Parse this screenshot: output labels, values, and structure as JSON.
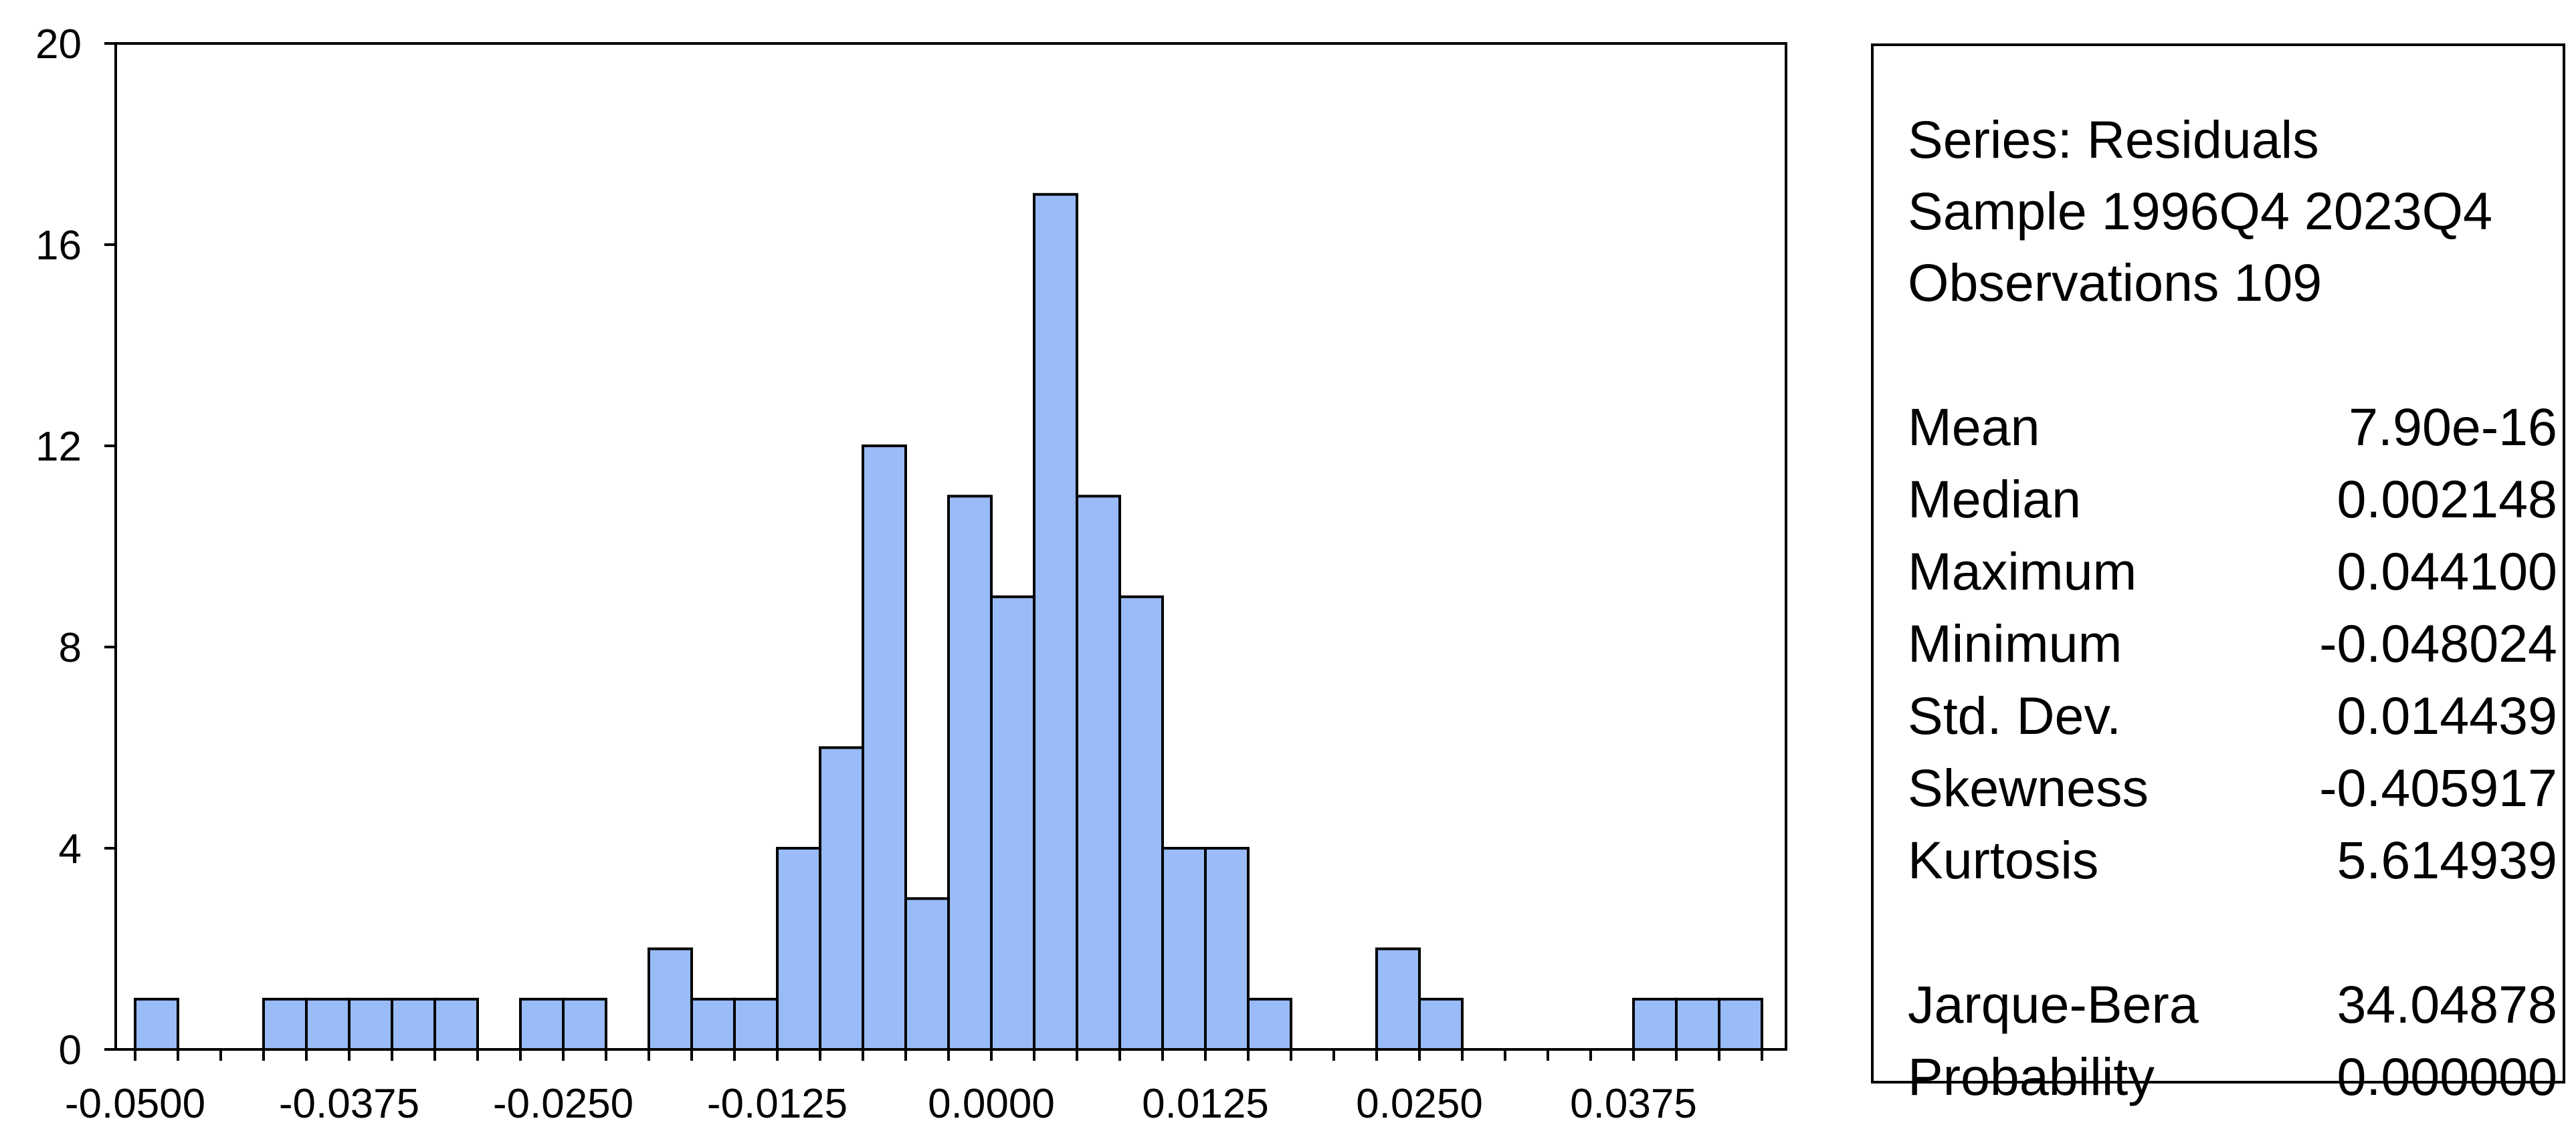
{
  "chart_data": {
    "type": "bar",
    "title": "",
    "xlabel": "",
    "ylabel": "",
    "ylim": [
      0,
      20
    ],
    "yticks": [
      0,
      4,
      8,
      12,
      16,
      20
    ],
    "xticks": [
      "-0.0500",
      "-0.0375",
      "-0.0250",
      "-0.0125",
      "0.0000",
      "0.0125",
      "0.0250",
      "0.0375"
    ],
    "bin_start": -0.05,
    "bin_width": 0.0025,
    "values": [
      1,
      0,
      0,
      1,
      1,
      1,
      1,
      1,
      0,
      1,
      1,
      0,
      2,
      1,
      1,
      4,
      6,
      12,
      3,
      11,
      9,
      17,
      11,
      9,
      4,
      4,
      1,
      0,
      0,
      2,
      1,
      0,
      0,
      0,
      0,
      1,
      1,
      1
    ],
    "bar_color": "#99bbf7",
    "grid": false,
    "legend": "none"
  },
  "stats": {
    "series_label": "Series: Residuals",
    "sample_label": "Sample 1996Q4 2023Q4",
    "observations_label": "Observations 109",
    "rows": [
      {
        "label": "Mean",
        "value": "7.90e-16"
      },
      {
        "label": "Median",
        "value": "0.002148"
      },
      {
        "label": "Maximum",
        "value": "0.044100"
      },
      {
        "label": "Minimum",
        "value": "-0.048024"
      },
      {
        "label": "Std. Dev.",
        "value": "0.014439"
      },
      {
        "label": "Skewness",
        "value": "-0.405917"
      },
      {
        "label": "Kurtosis",
        "value": "5.614939"
      }
    ],
    "tests": [
      {
        "label": "Jarque-Bera",
        "value": "34.04878"
      },
      {
        "label": "Probability",
        "value": "0.000000"
      }
    ]
  }
}
